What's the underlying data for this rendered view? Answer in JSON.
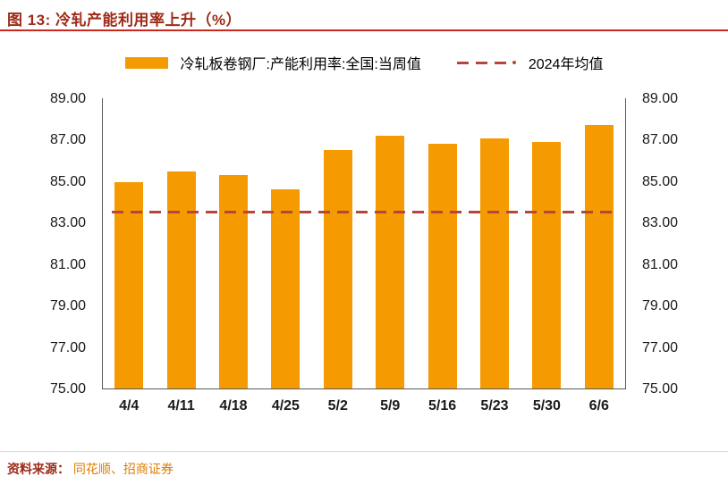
{
  "header": {
    "title": "图 13:  冷轧产能利用率上升（%）"
  },
  "footer": {
    "source_label": "资料来源：",
    "source_text": "同花顺、招商证券"
  },
  "colors": {
    "bar": "#F59A00",
    "dash": "#B5473A",
    "title": "#9E2B18",
    "rule": "#C8281E"
  },
  "chart_data": {
    "type": "bar",
    "title": "图 13: 冷轧产能利用率上升（%）",
    "categories": [
      "4/4",
      "4/11",
      "4/18",
      "4/25",
      "5/2",
      "5/9",
      "5/16",
      "5/23",
      "5/30",
      "6/6"
    ],
    "series": [
      {
        "name": "冷轧板卷钢厂:产能利用率:全国:当周值",
        "values": [
          84.95,
          85.45,
          85.3,
          84.6,
          86.5,
          87.2,
          86.8,
          87.05,
          86.9,
          87.7
        ]
      }
    ],
    "reference_line": {
      "name": "2024年均值",
      "value": 83.5
    },
    "ylim": [
      75,
      89
    ],
    "yticks": [
      75,
      77,
      79,
      81,
      83,
      85,
      87,
      89
    ],
    "ytick_format": "2dp",
    "legend_position": "top",
    "grid": false,
    "xlabel": "",
    "ylabel": ""
  }
}
